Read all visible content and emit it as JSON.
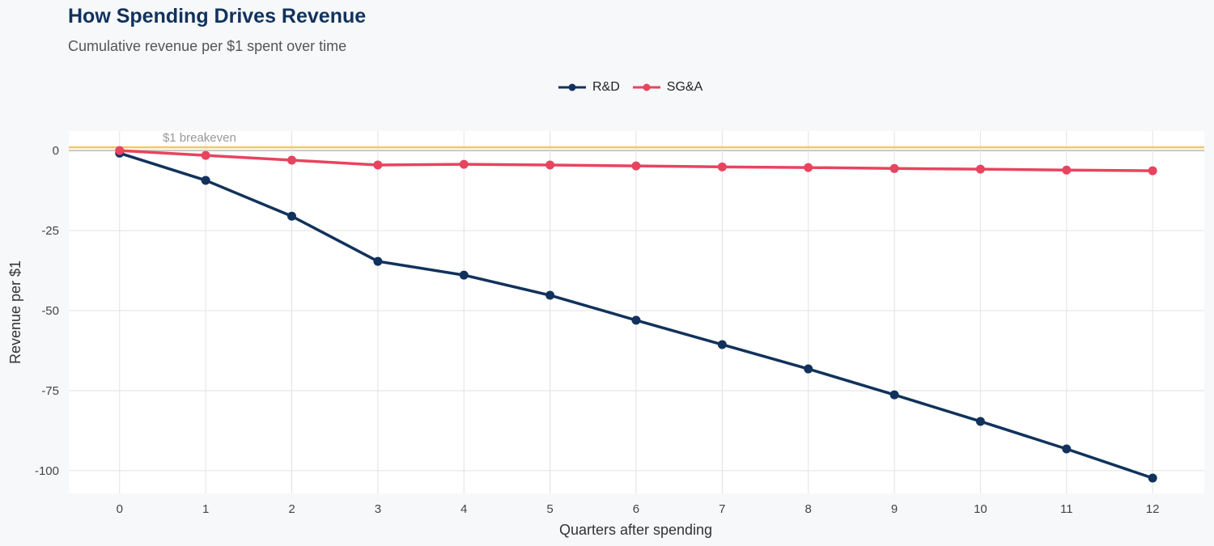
{
  "chart_data": {
    "type": "line",
    "title": "How Spending Drives Revenue",
    "subtitle": "Cumulative revenue per $1 spent over time",
    "xlabel": "Quarters after spending",
    "ylabel": "Revenue per $1",
    "x": [
      0,
      1,
      2,
      3,
      4,
      5,
      6,
      7,
      8,
      9,
      10,
      11,
      12
    ],
    "xticks": [
      "0",
      "1",
      "2",
      "3",
      "4",
      "5",
      "6",
      "7",
      "8",
      "9",
      "10",
      "11",
      "12"
    ],
    "yticks": [
      0,
      -25,
      -50,
      -75,
      -100
    ],
    "ytick_labels": [
      "0",
      "-25",
      "-50",
      "-75",
      "-100"
    ],
    "xlim": [
      -0.59,
      12.6
    ],
    "ylim": [
      -107.1,
      6.1
    ],
    "grid": true,
    "legend_position": "top",
    "series": [
      {
        "name": "R&D",
        "color": "#11325c",
        "values": [
          -0.8,
          -9.3,
          -20.5,
          -34.6,
          -38.9,
          -45.2,
          -53.0,
          -60.6,
          -68.2,
          -76.3,
          -84.6,
          -93.2,
          -102.3
        ]
      },
      {
        "name": "SG&A",
        "color": "#e8445f",
        "values": [
          0,
          -1.5,
          -3.0,
          -4.5,
          -4.3,
          -4.5,
          -4.8,
          -5.1,
          -5.3,
          -5.6,
          -5.8,
          -6.1,
          -6.3
        ]
      }
    ],
    "annotations": [
      {
        "type": "hline",
        "y": 1,
        "color": "#f2c867",
        "label": "$1 breakeven"
      }
    ]
  }
}
